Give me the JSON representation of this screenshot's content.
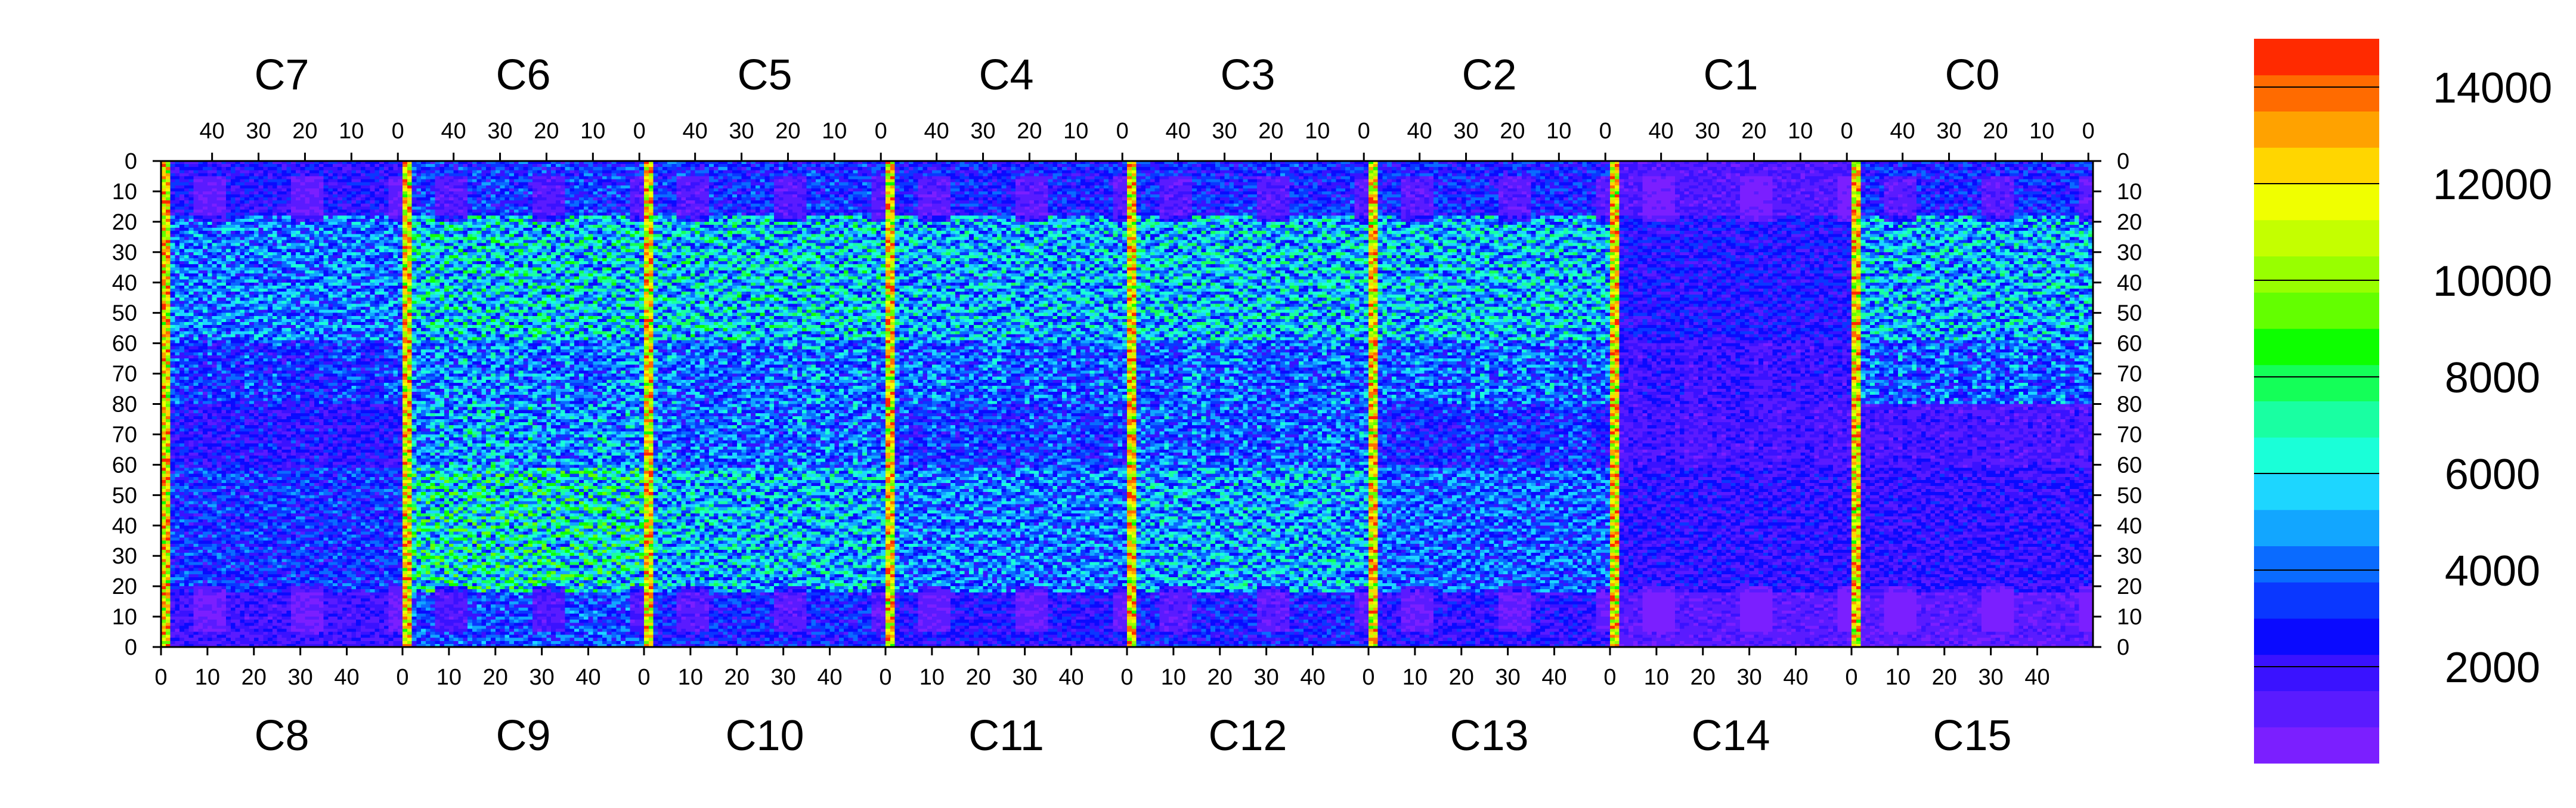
{
  "chart_data": {
    "type": "heatmap",
    "title": "",
    "xlabel": "",
    "ylabel": "",
    "grid": false,
    "legend": "colorbar-right",
    "top_chips": [
      "C7",
      "C6",
      "C5",
      "C4",
      "C3",
      "C2",
      "C1",
      "C0"
    ],
    "bottom_chips": [
      "C8",
      "C9",
      "C10",
      "C11",
      "C12",
      "C13",
      "C14",
      "C15"
    ],
    "top_x_ticks": [
      "40",
      "30",
      "20",
      "10",
      "0"
    ],
    "bottom_x_ticks": [
      "0",
      "10",
      "20",
      "30",
      "40"
    ],
    "y_ticks_left": [
      "0",
      "10",
      "20",
      "30",
      "40",
      "50",
      "60",
      "70",
      "80",
      "70",
      "60",
      "50",
      "40",
      "30",
      "20",
      "10",
      "0"
    ],
    "y_ticks_right": [
      "0",
      "10",
      "20",
      "30",
      "40",
      "50",
      "60",
      "70",
      "80",
      "70",
      "60",
      "50",
      "40",
      "30",
      "20",
      "10",
      "0"
    ],
    "chip_columns": 52,
    "chip_rows": 80,
    "colorbar": {
      "min": 0,
      "max": 15000,
      "tick_values": [
        2000,
        4000,
        6000,
        8000,
        10000,
        12000,
        14000
      ],
      "tick_labels": [
        "2000",
        "4000",
        "6000",
        "8000",
        "10000",
        "12000",
        "14000"
      ],
      "colors": [
        "#7b1fff",
        "#5a1bff",
        "#3a12ff",
        "#0a0aff",
        "#0a37ff",
        "#0a6bff",
        "#12a6ff",
        "#1dd6ff",
        "#1affd8",
        "#19ffa2",
        "#14ff58",
        "#0dff00",
        "#63ff00",
        "#98ff00",
        "#c4ff00",
        "#f0ff00",
        "#ffd600",
        "#ffa200",
        "#ff6b00",
        "#ff2a00"
      ]
    },
    "chip_levels_top": [
      {
        "chip": "C7",
        "level": 5200
      },
      {
        "chip": "C6",
        "level": 7000
      },
      {
        "chip": "C5",
        "level": 6800
      },
      {
        "chip": "C4",
        "level": 6200
      },
      {
        "chip": "C3",
        "level": 6600
      },
      {
        "chip": "C2",
        "level": 6400
      },
      {
        "chip": "C1",
        "level": 3000
      },
      {
        "chip": "C0",
        "level": 6300
      }
    ],
    "chip_levels_bottom": [
      {
        "chip": "C8",
        "level": 3800
      },
      {
        "chip": "C9",
        "level": 7800
      },
      {
        "chip": "C10",
        "level": 6400
      },
      {
        "chip": "C11",
        "level": 5200
      },
      {
        "chip": "C12",
        "level": 6100
      },
      {
        "chip": "C13",
        "level": 4800
      },
      {
        "chip": "C14",
        "level": 2600
      },
      {
        "chip": "C15",
        "level": 2500
      }
    ],
    "hot_column_level": 12500
  }
}
